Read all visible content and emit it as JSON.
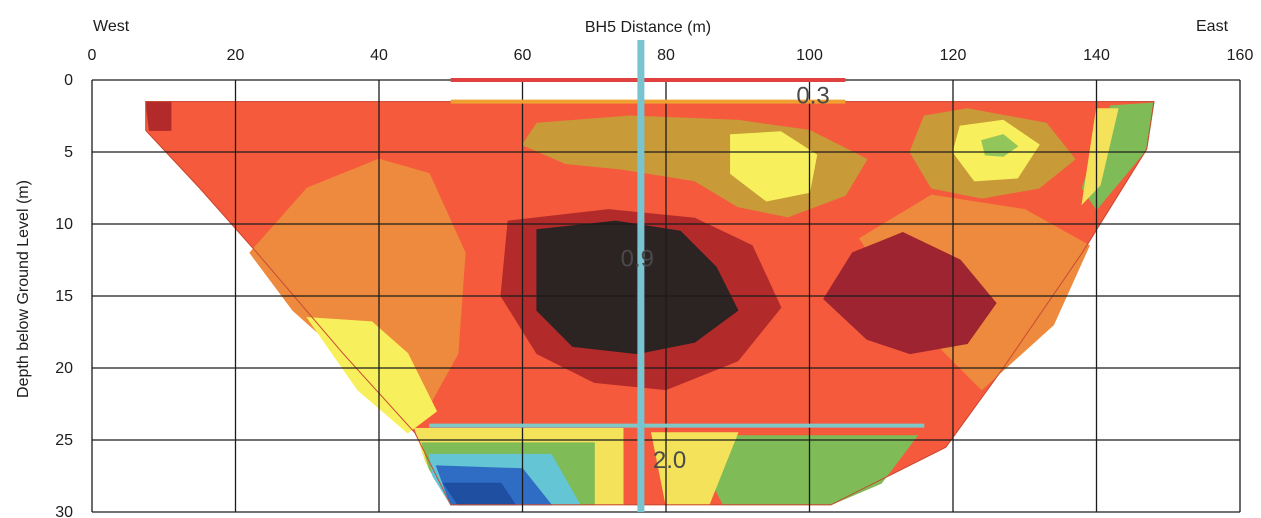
{
  "chart_data": {
    "type": "heatmap",
    "title": "BH5 Distance (m)",
    "xlabel": "BH5 Distance (m)",
    "ylabel": "Depth below Ground Level (m)",
    "x_left_label": "West",
    "x_right_label": "East",
    "xlim": [
      0,
      160
    ],
    "ylim": [
      0,
      30
    ],
    "y_reversed": true,
    "x_ticks": [
      0,
      20,
      40,
      60,
      80,
      100,
      120,
      140,
      160
    ],
    "y_ticks": [
      0,
      5,
      10,
      15,
      20,
      25,
      30
    ],
    "grid": true,
    "section_outline": [
      [
        7.5,
        1.5
      ],
      [
        148,
        1.5
      ],
      [
        147,
        4.8
      ],
      [
        138,
        12
      ],
      [
        127,
        20
      ],
      [
        119,
        25.5
      ],
      [
        103,
        29.5
      ],
      [
        50,
        29.5
      ],
      [
        45,
        24.5
      ],
      [
        35,
        19
      ],
      [
        23,
        12
      ],
      [
        15,
        7.5
      ],
      [
        7.5,
        3.5
      ]
    ],
    "borehole": {
      "x": 76.5
    },
    "reference_lines": [
      {
        "depth": 0,
        "x_start": 50,
        "x_end": 105,
        "color": "#e04040"
      },
      {
        "depth": 1.5,
        "x_start": 50,
        "x_end": 105,
        "color": "#f0a030"
      },
      {
        "depth": 24,
        "x_start": 47,
        "x_end": 116,
        "color": "#7fc8c8"
      }
    ],
    "annotations": [
      {
        "text": "0.3",
        "x": 100.5,
        "y": 1.2
      },
      {
        "text": "0.9",
        "x": 76,
        "y": 12.5
      },
      {
        "text": "2.0",
        "x": 80.5,
        "y": 26.5
      }
    ],
    "zones": [
      {
        "name": "base",
        "color": "#f55a3c",
        "polygon": [
          [
            7.5,
            1.5
          ],
          [
            148,
            1.5
          ],
          [
            147,
            4.8
          ],
          [
            138,
            12
          ],
          [
            127,
            20
          ],
          [
            119,
            25.5
          ],
          [
            103,
            29.5
          ],
          [
            50,
            29.5
          ],
          [
            45,
            24.5
          ],
          [
            35,
            19
          ],
          [
            23,
            12
          ],
          [
            15,
            7.5
          ],
          [
            7.5,
            3.5
          ]
        ]
      },
      {
        "name": "orange-west",
        "color": "#ee8a3d",
        "polygon": [
          [
            22,
            12
          ],
          [
            30,
            7.5
          ],
          [
            40,
            5.5
          ],
          [
            47,
            6.5
          ],
          [
            52,
            12
          ],
          [
            51,
            19
          ],
          [
            46,
            23.5
          ],
          [
            37,
            20
          ],
          [
            28,
            16
          ]
        ]
      },
      {
        "name": "yellow-west",
        "color": "#f7f05c",
        "polygon": [
          [
            30,
            16.5
          ],
          [
            39,
            16.8
          ],
          [
            44,
            19
          ],
          [
            48,
            23
          ],
          [
            44,
            24.5
          ],
          [
            37,
            21.5
          ]
        ]
      },
      {
        "name": "orange-east",
        "color": "#ee8a3d",
        "polygon": [
          [
            107,
            11
          ],
          [
            117,
            8
          ],
          [
            130,
            9
          ],
          [
            139,
            11.5
          ],
          [
            134,
            17
          ],
          [
            124,
            21.5
          ],
          [
            115,
            17
          ]
        ]
      },
      {
        "name": "olive-east",
        "color": "#c99a38",
        "polygon": [
          [
            116,
            2.5
          ],
          [
            122,
            2
          ],
          [
            133,
            3
          ],
          [
            137,
            5.5
          ],
          [
            132,
            7.5
          ],
          [
            124,
            8.2
          ],
          [
            117,
            7.5
          ],
          [
            114,
            5
          ]
        ]
      },
      {
        "name": "yellow-east",
        "color": "#f7f05c",
        "polygon": [
          [
            121,
            3.2
          ],
          [
            127,
            2.8
          ],
          [
            132,
            4.5
          ],
          [
            129,
            6.8
          ],
          [
            123,
            7
          ],
          [
            120,
            5
          ]
        ]
      },
      {
        "name": "green-east",
        "color": "#92c65a",
        "polygon": [
          [
            124,
            4.2
          ],
          [
            127,
            3.8
          ],
          [
            129,
            4.6
          ],
          [
            127,
            5.3
          ],
          [
            124.5,
            5.2
          ]
        ]
      },
      {
        "name": "olive-centre",
        "color": "#c99a38",
        "polygon": [
          [
            62,
            3
          ],
          [
            75,
            2.5
          ],
          [
            90,
            2.8
          ],
          [
            100,
            3.5
          ],
          [
            108,
            5.5
          ],
          [
            105,
            8
          ],
          [
            97,
            9.5
          ],
          [
            90,
            8.8
          ],
          [
            84,
            7
          ],
          [
            74,
            6.2
          ],
          [
            66,
            5.8
          ],
          [
            60,
            4.5
          ]
        ]
      },
      {
        "name": "yellow-centre",
        "color": "#f7f05c",
        "polygon": [
          [
            89,
            3.8
          ],
          [
            96,
            3.6
          ],
          [
            101,
            5.2
          ],
          [
            100,
            7.8
          ],
          [
            94,
            8.4
          ],
          [
            89,
            6.5
          ]
        ]
      },
      {
        "name": "dark-red-centre",
        "color": "#b32a2a",
        "polygon": [
          [
            58,
            9.8
          ],
          [
            72,
            9
          ],
          [
            84,
            9.6
          ],
          [
            92,
            11.5
          ],
          [
            96,
            15.8
          ],
          [
            90,
            19.5
          ],
          [
            80,
            21.5
          ],
          [
            70,
            21
          ],
          [
            62,
            19
          ],
          [
            57,
            15
          ]
        ]
      },
      {
        "name": "deep-core",
        "color": "#2c2323",
        "polygon": [
          [
            62,
            10.4
          ],
          [
            73,
            9.8
          ],
          [
            82,
            10.5
          ],
          [
            87,
            13
          ],
          [
            90,
            16
          ],
          [
            84,
            18.2
          ],
          [
            76,
            19
          ],
          [
            67,
            18.5
          ],
          [
            62,
            16
          ]
        ]
      },
      {
        "name": "dark-red-east",
        "color": "#9e2431",
        "polygon": [
          [
            102,
            15.2
          ],
          [
            106,
            12
          ],
          [
            113,
            10.6
          ],
          [
            121,
            12.5
          ],
          [
            126,
            15.5
          ],
          [
            122,
            18.3
          ],
          [
            114,
            19
          ],
          [
            108,
            18
          ]
        ]
      },
      {
        "name": "red-west-top",
        "color": "#b32a2a",
        "polygon": [
          [
            7.5,
            1.5
          ],
          [
            11,
            1.5
          ],
          [
            11,
            3.5
          ],
          [
            8,
            3.5
          ]
        ]
      },
      {
        "name": "yellow-band-base",
        "color": "#f3e25a",
        "polygon": [
          [
            45,
            24.2
          ],
          [
            74,
            24.2
          ],
          [
            74,
            29.5
          ],
          [
            50,
            29.5
          ],
          [
            46.5,
            26.5
          ]
        ]
      },
      {
        "name": "green-band-base",
        "color": "#7fbb57",
        "polygon": [
          [
            46,
            25.2
          ],
          [
            70,
            25.2
          ],
          [
            70,
            29.5
          ],
          [
            50,
            29.5
          ],
          [
            47,
            27
          ]
        ]
      },
      {
        "name": "cyan-band-base",
        "color": "#64c6d5",
        "polygon": [
          [
            47,
            26
          ],
          [
            64,
            26
          ],
          [
            68,
            29.5
          ],
          [
            50,
            29.5
          ],
          [
            47.5,
            27.5
          ]
        ]
      },
      {
        "name": "blue-base",
        "color": "#2f6cc4",
        "polygon": [
          [
            48,
            26.8
          ],
          [
            60,
            27
          ],
          [
            64,
            29.5
          ],
          [
            50,
            29.5
          ]
        ]
      },
      {
        "name": "dark-blue-base",
        "color": "#1f4fa1",
        "polygon": [
          [
            49,
            28
          ],
          [
            57,
            28
          ],
          [
            59,
            29.5
          ],
          [
            51,
            29.5
          ]
        ]
      },
      {
        "name": "green-east-base",
        "color": "#7fbb57",
        "polygon": [
          [
            83,
            24.7
          ],
          [
            115,
            24.7
          ],
          [
            110,
            28
          ],
          [
            103,
            29.5
          ],
          [
            88,
            29.5
          ]
        ]
      },
      {
        "name": "yellow-east-base",
        "color": "#f3e25a",
        "polygon": [
          [
            78,
            24.5
          ],
          [
            90,
            24.5
          ],
          [
            86,
            29.5
          ],
          [
            80,
            29.5
          ]
        ]
      },
      {
        "name": "green-east-edge",
        "color": "#7fbb57",
        "polygon": [
          [
            142,
            1.8
          ],
          [
            148,
            1.6
          ],
          [
            147,
            4.8
          ],
          [
            140,
            9
          ],
          [
            138,
            7.5
          ]
        ]
      },
      {
        "name": "yellow-east-edge",
        "color": "#f3e25a",
        "polygon": [
          [
            140,
            2
          ],
          [
            143,
            2
          ],
          [
            140.5,
            7.3
          ],
          [
            138,
            8.6
          ]
        ]
      }
    ]
  }
}
